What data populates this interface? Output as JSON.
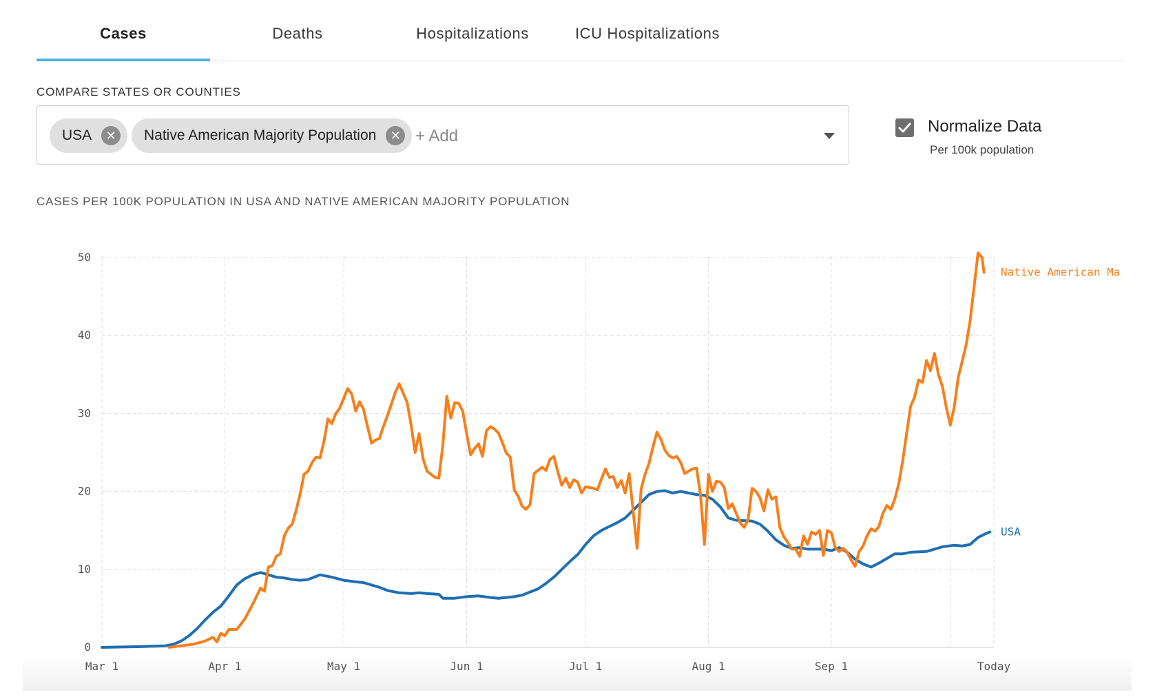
{
  "tabs": [
    {
      "label": "Cases",
      "active": true
    },
    {
      "label": "Deaths",
      "active": false
    },
    {
      "label": "Hospitalizations",
      "active": false
    },
    {
      "label": "ICU Hospitalizations",
      "active": false
    }
  ],
  "compare": {
    "label": "COMPARE STATES OR COUNTIES",
    "chips": [
      {
        "label": "USA"
      },
      {
        "label": "Native American Majority Population"
      }
    ],
    "add_placeholder": "+ Add"
  },
  "normalize": {
    "label": "Normalize Data",
    "sublabel": "Per 100k population",
    "checked": true
  },
  "chart_title": "CASES PER 100K POPULATION IN USA AND NATIVE AMERICAN MAJORITY POPULATION",
  "colors": {
    "usa": "#1f6fb2",
    "native": "#f77f1b",
    "tab_indicator": "#4fb0e3"
  },
  "chart_data": {
    "type": "line",
    "x_ticks": [
      {
        "day": 0,
        "label": "Mar 1"
      },
      {
        "day": 31,
        "label": "Apr 1"
      },
      {
        "day": 61,
        "label": "May 1"
      },
      {
        "day": 92,
        "label": "Jun 1"
      },
      {
        "day": 122,
        "label": "Jul 1"
      },
      {
        "day": 153,
        "label": "Aug 1"
      },
      {
        "day": 184,
        "label": "Sep 1"
      },
      {
        "day": 225,
        "label": "Today"
      }
    ],
    "extra_gridline_days": [
      214
    ],
    "y_ticks": [
      0,
      10,
      20,
      30,
      40,
      50
    ],
    "xlim": [
      0,
      225
    ],
    "ylim": [
      0,
      50
    ],
    "grid": true,
    "series": [
      {
        "name": "USA",
        "color": "#1f6fb2",
        "points": [
          [
            0,
            0
          ],
          [
            10,
            0.1
          ],
          [
            16,
            0.2
          ],
          [
            18,
            0.4
          ],
          [
            20,
            0.8
          ],
          [
            22,
            1.5
          ],
          [
            24,
            2.4
          ],
          [
            26,
            3.5
          ],
          [
            28,
            4.5
          ],
          [
            30,
            5.3
          ],
          [
            32,
            6.6
          ],
          [
            34,
            8
          ],
          [
            36,
            8.8
          ],
          [
            38,
            9.3
          ],
          [
            40,
            9.6
          ],
          [
            42,
            9.3
          ],
          [
            44,
            9
          ],
          [
            46,
            8.9
          ],
          [
            48,
            8.7
          ],
          [
            50,
            8.6
          ],
          [
            52,
            8.7
          ],
          [
            55,
            9.3
          ],
          [
            58,
            9
          ],
          [
            61,
            8.6
          ],
          [
            64,
            8.4
          ],
          [
            66,
            8.3
          ],
          [
            68,
            8
          ],
          [
            70,
            7.7
          ],
          [
            72,
            7.3
          ],
          [
            75,
            7
          ],
          [
            78,
            6.9
          ],
          [
            80,
            7
          ],
          [
            82,
            6.9
          ],
          [
            85,
            6.8
          ],
          [
            86,
            6.3
          ],
          [
            89,
            6.3
          ],
          [
            92,
            6.5
          ],
          [
            95,
            6.6
          ],
          [
            98,
            6.4
          ],
          [
            100,
            6.3
          ],
          [
            102,
            6.4
          ],
          [
            104,
            6.5
          ],
          [
            106,
            6.7
          ],
          [
            108,
            7.1
          ],
          [
            110,
            7.5
          ],
          [
            112,
            8.2
          ],
          [
            114,
            9
          ],
          [
            116,
            10
          ],
          [
            118,
            11
          ],
          [
            120,
            11.9
          ],
          [
            122,
            13.2
          ],
          [
            124,
            14.3
          ],
          [
            126,
            15
          ],
          [
            128,
            15.5
          ],
          [
            130,
            16
          ],
          [
            132,
            16.6
          ],
          [
            134,
            17.6
          ],
          [
            136,
            18.6
          ],
          [
            138,
            19.6
          ],
          [
            140,
            20
          ],
          [
            142,
            20.1
          ],
          [
            144,
            19.8
          ],
          [
            146,
            20
          ],
          [
            148,
            19.8
          ],
          [
            150,
            19.6
          ],
          [
            152,
            19.5
          ],
          [
            154,
            19
          ],
          [
            156,
            18
          ],
          [
            158,
            16.6
          ],
          [
            160,
            16.3
          ],
          [
            164,
            16.2
          ],
          [
            166,
            15.8
          ],
          [
            168,
            14.9
          ],
          [
            170,
            13.8
          ],
          [
            172,
            13.1
          ],
          [
            174,
            12.7
          ],
          [
            176,
            12.8
          ],
          [
            178,
            12.6
          ],
          [
            180,
            12.6
          ],
          [
            182,
            12.6
          ],
          [
            184,
            12.4
          ],
          [
            186,
            12.8
          ],
          [
            188,
            12.2
          ],
          [
            190,
            11.3
          ],
          [
            192,
            10.7
          ],
          [
            194,
            10.3
          ],
          [
            196,
            10.8
          ],
          [
            198,
            11.4
          ],
          [
            200,
            12
          ],
          [
            202,
            12
          ],
          [
            204,
            12.2
          ],
          [
            208,
            12.3
          ],
          [
            210,
            12.6
          ],
          [
            212,
            12.9
          ],
          [
            215,
            13.1
          ],
          [
            217,
            13
          ],
          [
            219,
            13.2
          ],
          [
            221,
            14.1
          ],
          [
            223,
            14.6
          ],
          [
            224,
            14.8
          ]
        ]
      },
      {
        "name": "Native American Ma",
        "color": "#f77f1b",
        "points": [
          [
            17,
            0
          ],
          [
            20,
            0.2
          ],
          [
            23,
            0.4
          ],
          [
            26,
            0.8
          ],
          [
            28,
            1.3
          ],
          [
            29,
            0.7
          ],
          [
            30,
            1.8
          ],
          [
            31,
            1.5
          ],
          [
            32,
            2.3
          ],
          [
            34,
            2.3
          ],
          [
            36,
            3.6
          ],
          [
            38,
            5.5
          ],
          [
            40,
            7.6
          ],
          [
            41,
            7.2
          ],
          [
            42,
            10.3
          ],
          [
            43,
            10.5
          ],
          [
            44,
            11.7
          ],
          [
            45,
            12
          ],
          [
            46,
            14.3
          ],
          [
            47,
            15.3
          ],
          [
            48,
            15.8
          ],
          [
            49,
            17.6
          ],
          [
            50,
            19.7
          ],
          [
            51,
            22.2
          ],
          [
            52,
            22.6
          ],
          [
            53,
            23.7
          ],
          [
            54,
            24.4
          ],
          [
            55,
            24.3
          ],
          [
            56,
            26.4
          ],
          [
            57,
            29.3
          ],
          [
            58,
            28.7
          ],
          [
            59,
            30
          ],
          [
            60,
            30.7
          ],
          [
            62,
            33.2
          ],
          [
            63,
            32.5
          ],
          [
            64,
            30.3
          ],
          [
            65,
            31.5
          ],
          [
            66,
            30.5
          ],
          [
            67,
            28.3
          ],
          [
            68,
            26.2
          ],
          [
            69,
            26.6
          ],
          [
            70,
            26.8
          ],
          [
            71,
            28.3
          ],
          [
            72,
            29.7
          ],
          [
            73,
            31.2
          ],
          [
            74,
            32.7
          ],
          [
            75,
            33.8
          ],
          [
            76,
            32.6
          ],
          [
            77,
            31.4
          ],
          [
            78,
            28.5
          ],
          [
            79,
            25
          ],
          [
            80,
            27.4
          ],
          [
            81,
            24.2
          ],
          [
            82,
            22.6
          ],
          [
            84,
            21.8
          ],
          [
            85,
            21.7
          ],
          [
            86,
            26
          ],
          [
            87,
            32.2
          ],
          [
            88,
            29.4
          ],
          [
            89,
            31.4
          ],
          [
            90,
            31.3
          ],
          [
            91,
            30.3
          ],
          [
            92,
            27.4
          ],
          [
            93,
            24.7
          ],
          [
            94,
            25.5
          ],
          [
            95,
            26.1
          ],
          [
            96,
            24.5
          ],
          [
            97,
            27.8
          ],
          [
            98,
            28.3
          ],
          [
            99,
            28
          ],
          [
            100,
            27.5
          ],
          [
            101,
            26.3
          ],
          [
            102,
            24.9
          ],
          [
            103,
            24.4
          ],
          [
            104,
            20.2
          ],
          [
            105,
            19.4
          ],
          [
            106,
            18.1
          ],
          [
            107,
            17.7
          ],
          [
            108,
            18.3
          ],
          [
            109,
            22.3
          ],
          [
            110,
            22.7
          ],
          [
            111,
            23.1
          ],
          [
            112,
            22.7
          ],
          [
            113,
            24.1
          ],
          [
            114,
            24.5
          ],
          [
            115,
            22.5
          ],
          [
            116,
            20.8
          ],
          [
            117,
            21.7
          ],
          [
            118,
            20.5
          ],
          [
            119,
            21.5
          ],
          [
            120,
            21.2
          ],
          [
            121,
            19.8
          ],
          [
            122,
            20.6
          ],
          [
            124,
            20.4
          ],
          [
            125,
            20.2
          ],
          [
            126,
            21.6
          ],
          [
            127,
            22.9
          ],
          [
            128,
            21.8
          ],
          [
            129,
            21.9
          ],
          [
            130,
            20.5
          ],
          [
            131,
            21.4
          ],
          [
            132,
            19.8
          ],
          [
            133,
            22.3
          ],
          [
            134,
            17.5
          ],
          [
            135,
            12.7
          ],
          [
            136,
            20.3
          ],
          [
            137,
            22.2
          ],
          [
            138,
            23.6
          ],
          [
            139,
            25.7
          ],
          [
            140,
            27.6
          ],
          [
            141,
            26.7
          ],
          [
            142,
            25.3
          ],
          [
            143,
            24.6
          ],
          [
            144,
            24.3
          ],
          [
            145,
            24.5
          ],
          [
            146,
            23.7
          ],
          [
            147,
            22.3
          ],
          [
            148,
            22.6
          ],
          [
            149,
            22.9
          ],
          [
            150,
            23
          ],
          [
            151,
            19.5
          ],
          [
            152,
            13.2
          ],
          [
            153,
            22.2
          ],
          [
            154,
            20
          ],
          [
            155,
            21.3
          ],
          [
            156,
            21.2
          ],
          [
            157,
            20.5
          ],
          [
            158,
            17.8
          ],
          [
            159,
            18.4
          ],
          [
            160,
            17.2
          ],
          [
            161,
            16
          ],
          [
            162,
            15.4
          ],
          [
            163,
            16.4
          ],
          [
            164,
            20.4
          ],
          [
            165,
            20
          ],
          [
            166,
            19.2
          ],
          [
            167,
            17.5
          ],
          [
            168,
            20.2
          ],
          [
            169,
            19
          ],
          [
            170,
            19.3
          ],
          [
            171,
            15.4
          ],
          [
            172,
            14.2
          ],
          [
            173,
            13.5
          ],
          [
            174,
            12.6
          ],
          [
            175,
            12.6
          ],
          [
            176,
            11.7
          ],
          [
            177,
            14.3
          ],
          [
            178,
            13.2
          ],
          [
            179,
            14.8
          ],
          [
            180,
            14.5
          ],
          [
            181,
            15
          ],
          [
            182,
            11.8
          ],
          [
            183,
            15
          ],
          [
            184,
            14.7
          ],
          [
            185,
            12.8
          ],
          [
            186,
            12.3
          ],
          [
            187,
            12.7
          ],
          [
            188,
            12.2
          ],
          [
            189,
            11.2
          ],
          [
            190,
            10.4
          ],
          [
            191,
            12.3
          ],
          [
            192,
            13
          ],
          [
            193,
            14.3
          ],
          [
            194,
            15.2
          ],
          [
            195,
            14.9
          ],
          [
            196,
            15.5
          ],
          [
            197,
            17.2
          ],
          [
            198,
            18.2
          ],
          [
            199,
            17.7
          ],
          [
            200,
            19
          ],
          [
            201,
            21
          ],
          [
            202,
            23.9
          ],
          [
            203,
            27.5
          ],
          [
            204,
            30.9
          ],
          [
            205,
            32.1
          ],
          [
            206,
            34.3
          ],
          [
            207,
            34
          ],
          [
            208,
            36.8
          ],
          [
            209,
            35.5
          ],
          [
            210,
            37.7
          ],
          [
            211,
            35
          ],
          [
            212,
            33.5
          ],
          [
            213,
            30.8
          ],
          [
            214,
            28.5
          ],
          [
            215,
            30.8
          ],
          [
            216,
            34.6
          ],
          [
            217,
            36.7
          ],
          [
            218,
            38.8
          ],
          [
            219,
            41.9
          ],
          [
            220,
            46.2
          ],
          [
            221,
            50.6
          ],
          [
            222,
            50
          ],
          [
            222.5,
            48.1
          ]
        ]
      }
    ],
    "series_labels": [
      {
        "name": "Native American Ma",
        "color": "#f77f1b"
      },
      {
        "name": "USA",
        "color": "#1f6fb2"
      }
    ]
  }
}
